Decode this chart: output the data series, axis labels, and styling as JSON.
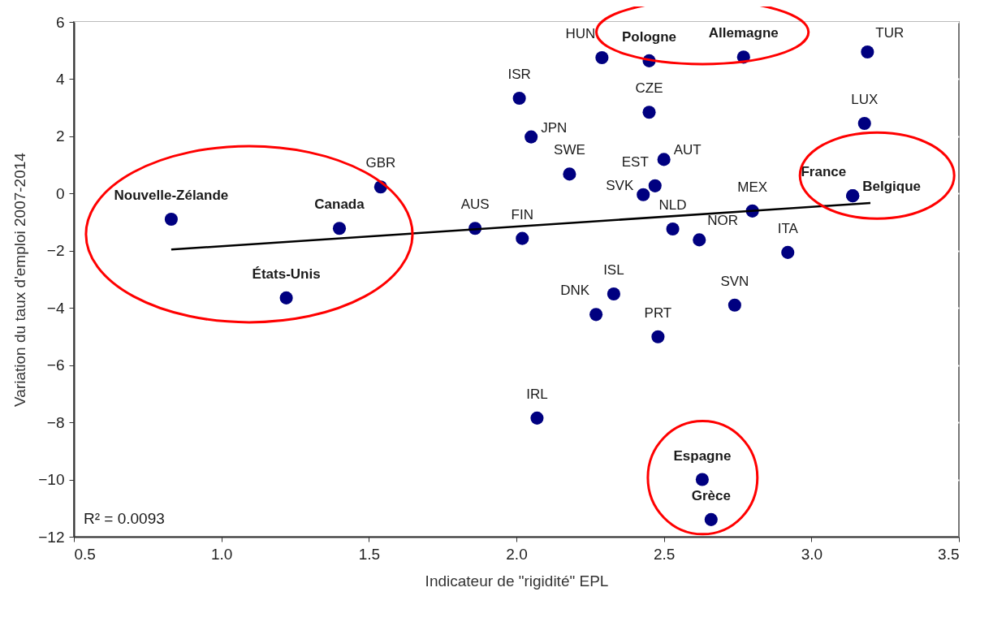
{
  "chart_data": {
    "type": "scatter",
    "xlabel": "Indicateur de \"rigidité\" EPL",
    "ylabel": "Variation du taux d'emploi 2007-2014",
    "xlim": [
      0.5,
      3.5
    ],
    "xticks": [
      0.5,
      {
        "value": 1,
        "label": "1.0"
      },
      1.5,
      {
        "value": 2,
        "label": "2.0"
      },
      2.5,
      {
        "value": 3,
        "label": "3.0"
      },
      3.5
    ],
    "ylim": [
      -12,
      6
    ],
    "yticks": [
      -12,
      -10,
      -8,
      -6,
      -4,
      -2,
      0,
      2,
      4,
      6
    ],
    "grid": "y",
    "marker": "circle",
    "annotations": [
      "R² = 0.0093"
    ],
    "series": [
      {
        "type": "scatter",
        "color": "#000080",
        "x": [
          0.83,
          1.4,
          1.22,
          1.54,
          1.86,
          2.02,
          2.01,
          2.05,
          2.18,
          2.29,
          2.07,
          2.27,
          2.33,
          2.45,
          2.45,
          2.5,
          2.47,
          2.43,
          2.53,
          2.62,
          2.48,
          2.77,
          3.19,
          3.18,
          2.8,
          2.92,
          2.74,
          3.14,
          3.14,
          2.63,
          2.66
        ],
        "values": [
          -0.9,
          -1.22,
          -3.65,
          0.23,
          -1.22,
          -1.57,
          3.33,
          1.98,
          0.68,
          4.75,
          -7.85,
          -4.23,
          -3.51,
          4.64,
          2.84,
          1.19,
          0.27,
          -0.04,
          -1.24,
          -1.62,
          -5.01,
          4.77,
          4.95,
          2.45,
          -0.61,
          -2.06,
          -3.9,
          -0.08,
          -0.08,
          -10.0,
          -11.4
        ],
        "value_labels": [
          "Nouvelle-Zélande",
          "Canada",
          "États-Unis",
          "GBR",
          "AUS",
          "FIN",
          "ISR",
          "JPN",
          "SWE",
          "HUN",
          "IRL",
          "DNK",
          "ISL",
          "Pologne",
          "CZE",
          "AUT",
          "EST",
          "SVK",
          "NLD",
          "NOR",
          "PRT",
          "Allemagne",
          "TUR",
          "LUX",
          "MEX",
          "ITA",
          "SVN",
          "France",
          "Belgique",
          "Espagne",
          "Grèce"
        ]
      },
      {
        "type": "line",
        "color": "#000000",
        "line_style": "solid",
        "marker": "none",
        "x": [
          0.83,
          3.2
        ],
        "values": [
          -1.96,
          -0.33
        ]
      }
    ]
  }
}
